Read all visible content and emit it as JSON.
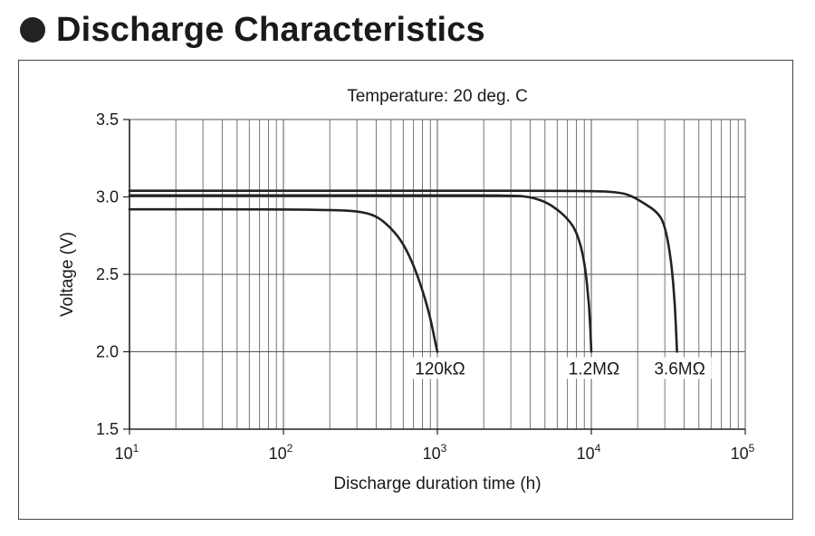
{
  "heading": {
    "title": "Discharge Characteristics"
  },
  "colors": {
    "curve": "#222222",
    "grid": "#555555",
    "text": "#1a1a1a"
  },
  "chart_data": {
    "type": "line",
    "title": "Temperature: 20 deg. C",
    "xlabel": "Discharge duration time (h)",
    "ylabel": "Voltage (V)",
    "xscale": "log",
    "xlim": [
      10,
      100000
    ],
    "ylim": [
      1.5,
      3.5
    ],
    "grid": true,
    "x_ticks": [
      {
        "value": 10,
        "base": "10",
        "exp": "1"
      },
      {
        "value": 100,
        "base": "10",
        "exp": "2"
      },
      {
        "value": 1000,
        "base": "10",
        "exp": "3"
      },
      {
        "value": 10000,
        "base": "10",
        "exp": "4"
      },
      {
        "value": 100000,
        "base": "10",
        "exp": "5"
      }
    ],
    "y_ticks": [
      {
        "value": 1.5,
        "label": "1.5"
      },
      {
        "value": 2.0,
        "label": "2.0"
      },
      {
        "value": 2.5,
        "label": "2.5"
      },
      {
        "value": 3.0,
        "label": "3.0"
      },
      {
        "value": 3.5,
        "label": "3.5"
      }
    ],
    "series": [
      {
        "name": "120kΩ",
        "x": [
          10,
          100,
          200,
          300,
          400,
          500,
          600,
          700,
          800,
          900,
          960,
          1000
        ],
        "y": [
          2.92,
          2.92,
          2.915,
          2.91,
          2.88,
          2.8,
          2.7,
          2.56,
          2.4,
          2.22,
          2.08,
          2.0
        ]
      },
      {
        "name": "1.2MΩ",
        "x": [
          10,
          1000,
          3000,
          4000,
          5000,
          6000,
          7000,
          8000,
          9000,
          9700,
          10000
        ],
        "y": [
          3.01,
          3.01,
          3.01,
          3.0,
          2.97,
          2.92,
          2.86,
          2.78,
          2.6,
          2.3,
          2.0
        ]
      },
      {
        "name": "3.6MΩ",
        "x": [
          10,
          1000,
          10000,
          15000,
          18000,
          22000,
          27000,
          30000,
          33000,
          35000,
          36000
        ],
        "y": [
          3.04,
          3.04,
          3.04,
          3.03,
          3.01,
          2.96,
          2.9,
          2.82,
          2.6,
          2.3,
          2.0
        ]
      }
    ],
    "series_labels": [
      {
        "series": 0,
        "text": "120kΩ"
      },
      {
        "series": 1,
        "text": "1.2MΩ"
      },
      {
        "series": 2,
        "text": "3.6MΩ"
      }
    ]
  }
}
